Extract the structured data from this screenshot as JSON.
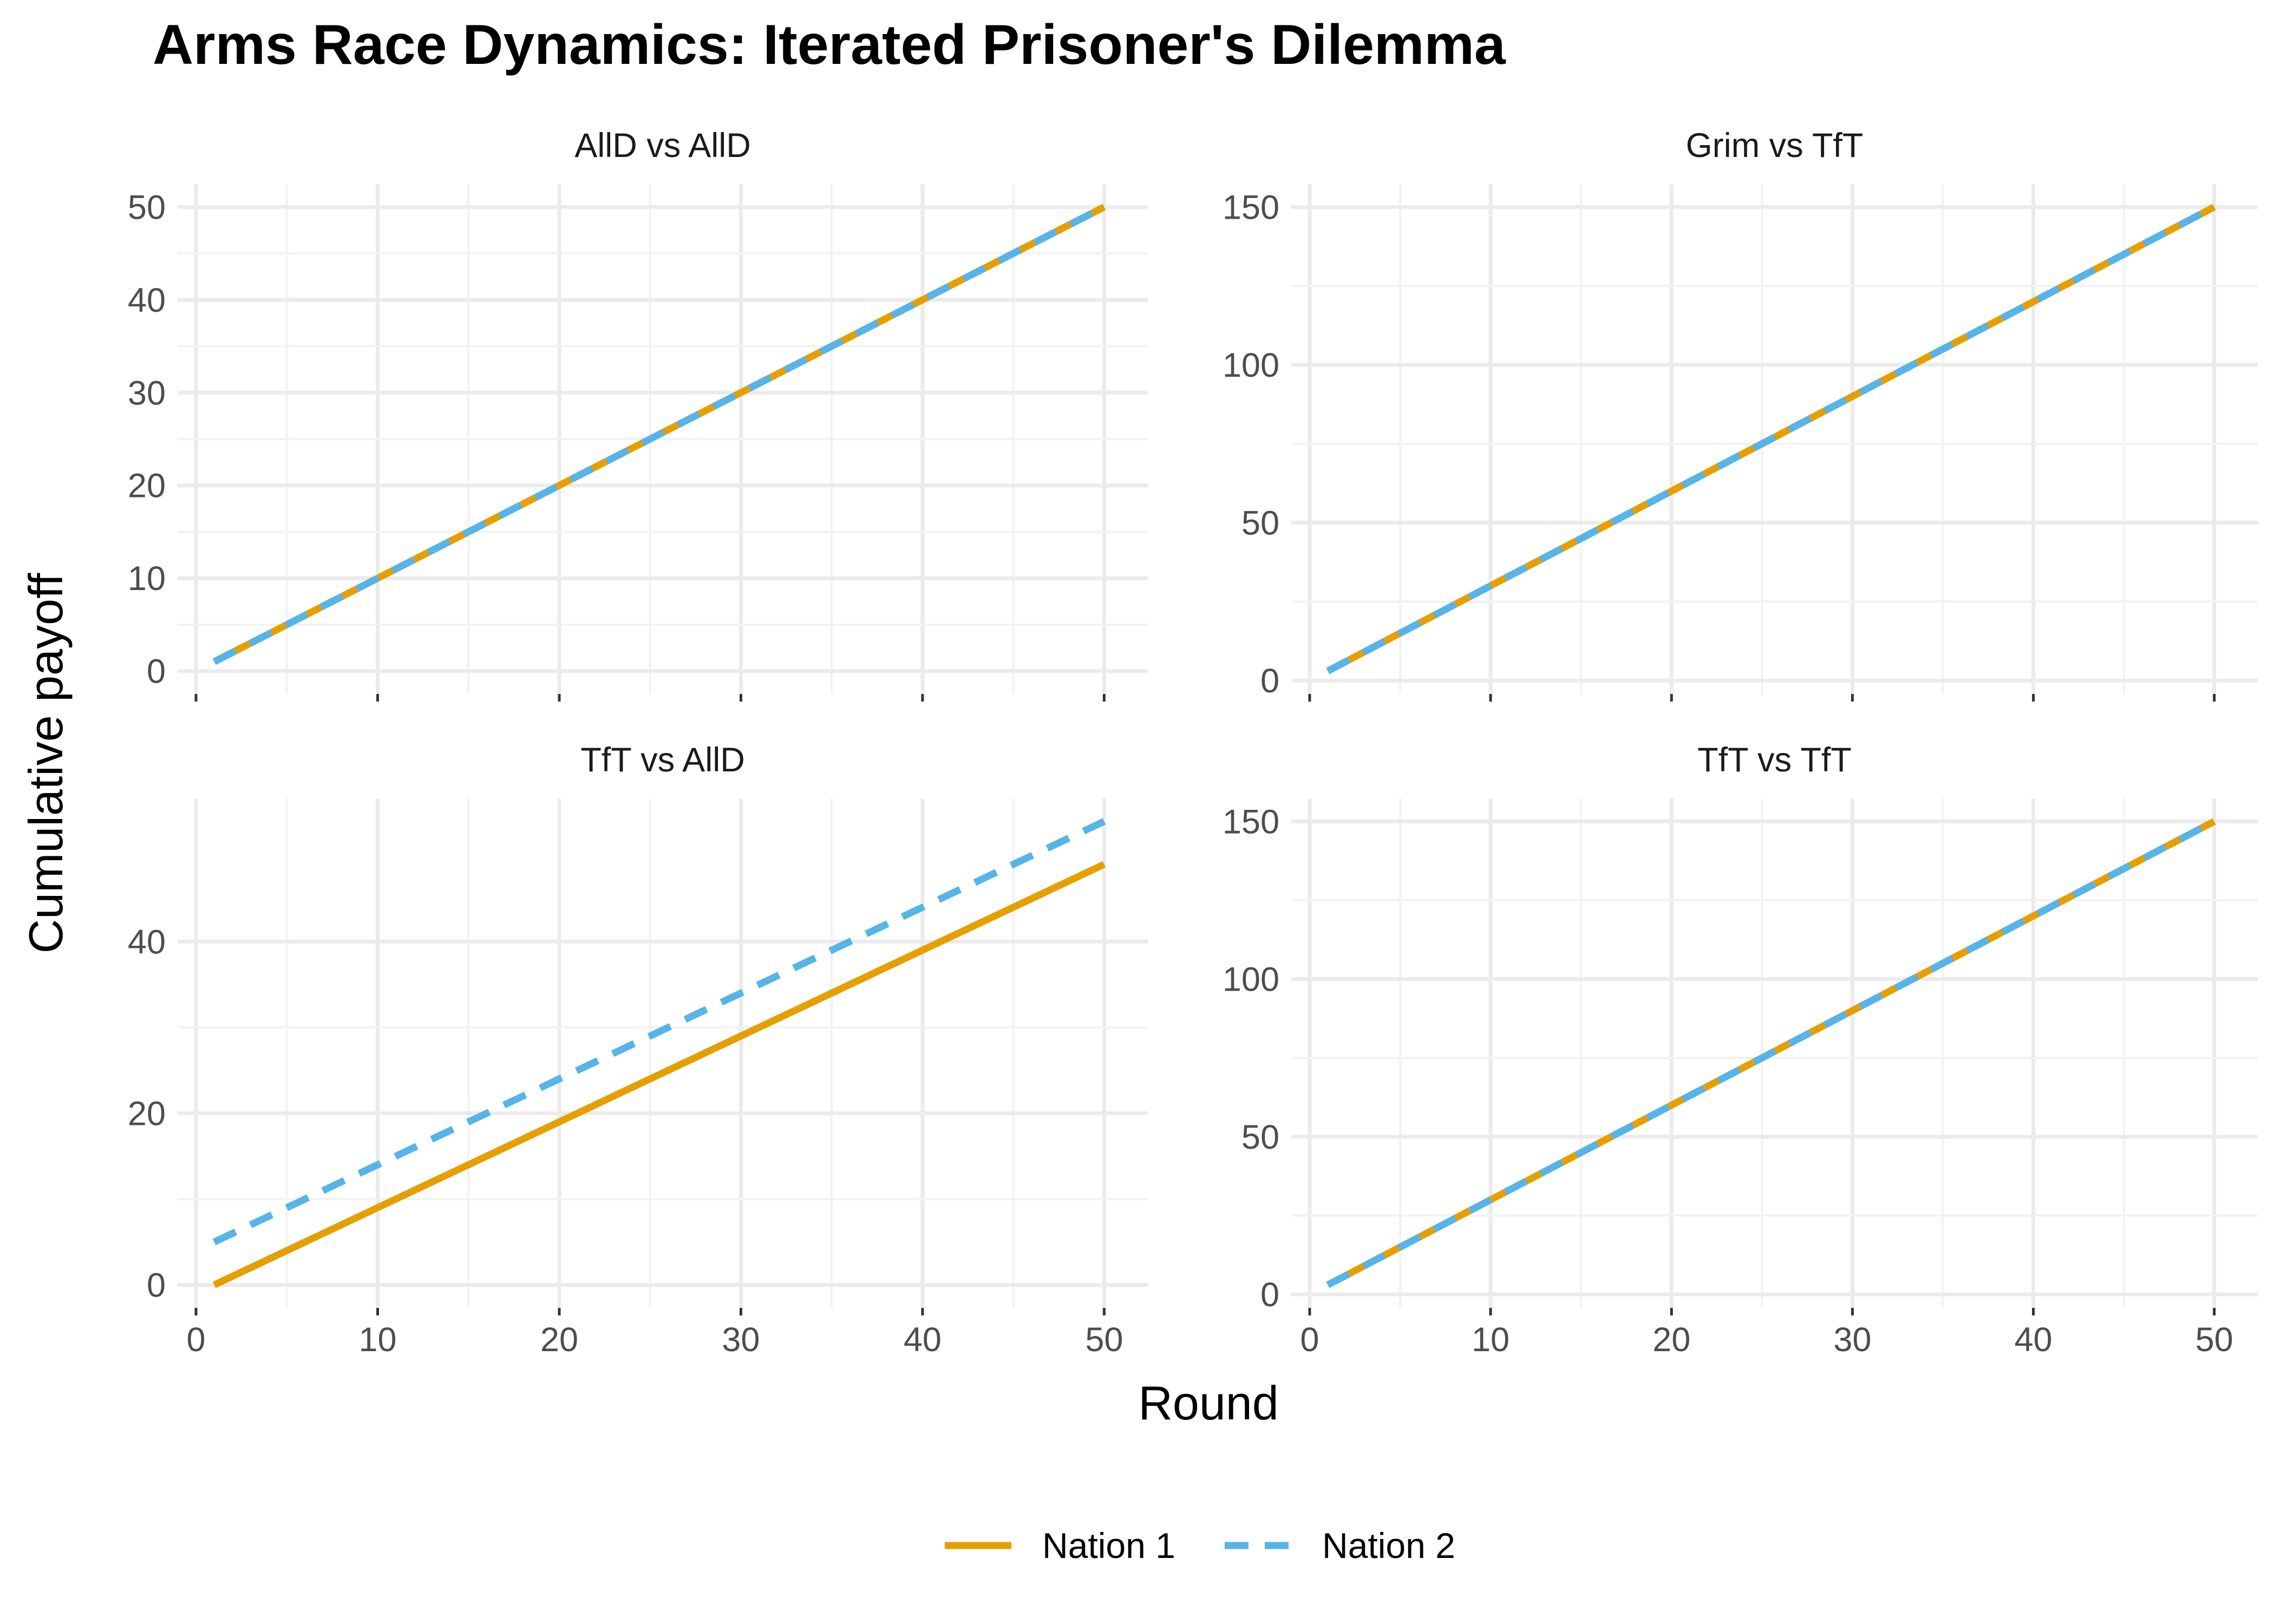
{
  "chart_data": {
    "type": "line",
    "title": "Arms Race Dynamics: Iterated Prisoner's Dilemma",
    "xlabel": "Round",
    "ylabel": "Cumulative payoff",
    "legend": {
      "position": "bottom",
      "entries": [
        {
          "name": "Nation 1",
          "color": "#E69F00",
          "dash": "solid"
        },
        {
          "name": "Nation 2",
          "color": "#56B4E9",
          "dash": "dashed"
        }
      ]
    },
    "grid": true,
    "x_ticks": [
      0,
      10,
      20,
      30,
      40,
      50
    ],
    "xlim": [
      0,
      52
    ],
    "panels": [
      {
        "name": "AllD vs AllD",
        "ylim": [
          0,
          50
        ],
        "y_ticks": [
          0,
          10,
          20,
          30,
          40,
          50
        ],
        "series": [
          {
            "name": "Nation 1",
            "x": [
              1,
              50
            ],
            "y": [
              1,
              50
            ]
          },
          {
            "name": "Nation 2",
            "x": [
              1,
              50
            ],
            "y": [
              1,
              50
            ]
          }
        ]
      },
      {
        "name": "Grim vs TfT",
        "ylim": [
          3,
          150
        ],
        "y_ticks": [
          0,
          50,
          100,
          150
        ],
        "series": [
          {
            "name": "Nation 1",
            "x": [
              1,
              50
            ],
            "y": [
              3,
              150
            ]
          },
          {
            "name": "Nation 2",
            "x": [
              1,
              50
            ],
            "y": [
              3,
              150
            ]
          }
        ]
      },
      {
        "name": "TfT vs AllD",
        "ylim": [
          0,
          54
        ],
        "y_ticks": [
          0,
          20,
          40
        ],
        "series": [
          {
            "name": "Nation 1",
            "x": [
              1,
              50
            ],
            "y": [
              0,
              49
            ]
          },
          {
            "name": "Nation 2",
            "x": [
              1,
              50
            ],
            "y": [
              5,
              54
            ]
          }
        ]
      },
      {
        "name": "TfT vs TfT",
        "ylim": [
          3,
          150
        ],
        "y_ticks": [
          0,
          50,
          100,
          150
        ],
        "series": [
          {
            "name": "Nation 1",
            "x": [
              1,
              50
            ],
            "y": [
              3,
              150
            ]
          },
          {
            "name": "Nation 2",
            "x": [
              1,
              50
            ],
            "y": [
              3,
              150
            ]
          }
        ]
      }
    ]
  }
}
